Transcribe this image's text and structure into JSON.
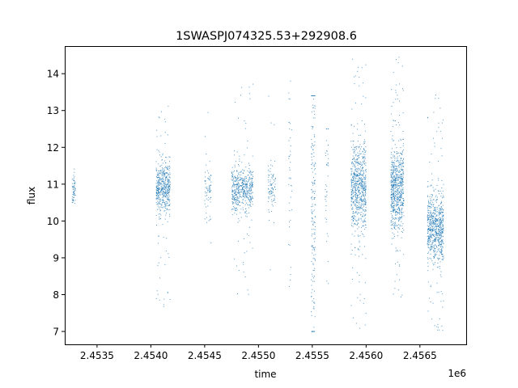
{
  "chart_data": {
    "type": "scatter",
    "title": "1SWASPJ074325.53+292908.6",
    "xlabel": "time",
    "ylabel": "flux",
    "x_offset_label": "1e6",
    "xlim": [
      2453200,
      2456930
    ],
    "ylim": [
      6.65,
      14.75
    ],
    "x_ticks": [
      2453500,
      2454000,
      2454500,
      2455000,
      2455500,
      2456000,
      2456500
    ],
    "x_tick_labels": [
      "2.4535",
      "2.4540",
      "2.4545",
      "2.4550",
      "2.4555",
      "2.4560",
      "2.4565"
    ],
    "y_ticks": [
      7,
      8,
      9,
      10,
      11,
      12,
      13,
      14
    ],
    "y_tick_labels": [
      "7",
      "8",
      "9",
      "10",
      "11",
      "12",
      "13",
      "14"
    ],
    "grid": false,
    "point_color": "#1f77b4",
    "clusters": [
      {
        "x_start": 2453270,
        "x_end": 2453300,
        "y_center": 10.85,
        "y_spread": 0.25,
        "y_min": 10.1,
        "y_max": 12.0,
        "count": 60
      },
      {
        "x_start": 2454050,
        "x_end": 2454180,
        "y_center": 10.9,
        "y_spread": 0.35,
        "y_min": 7.4,
        "y_max": 13.2,
        "count": 500
      },
      {
        "x_start": 2454500,
        "x_end": 2454560,
        "y_center": 10.85,
        "y_spread": 0.4,
        "y_min": 7.2,
        "y_max": 14.4,
        "count": 70
      },
      {
        "x_start": 2454750,
        "x_end": 2454950,
        "y_center": 10.85,
        "y_spread": 0.3,
        "y_min": 7.9,
        "y_max": 13.8,
        "count": 520
      },
      {
        "x_start": 2455090,
        "x_end": 2455160,
        "y_center": 10.9,
        "y_spread": 0.3,
        "y_min": 7.5,
        "y_max": 13.4,
        "count": 90
      },
      {
        "x_start": 2455280,
        "x_end": 2455310,
        "y_center": 11.5,
        "y_spread": 1.6,
        "y_min": 8.2,
        "y_max": 13.8,
        "count": 40
      },
      {
        "x_start": 2455490,
        "x_end": 2455530,
        "y_center": 10.5,
        "y_spread": 1.8,
        "y_min": 7.0,
        "y_max": 13.4,
        "count": 180
      },
      {
        "x_start": 2455620,
        "x_end": 2455650,
        "y_center": 10.5,
        "y_spread": 1.6,
        "y_min": 8.3,
        "y_max": 12.5,
        "count": 40
      },
      {
        "x_start": 2455860,
        "x_end": 2456000,
        "y_center": 10.9,
        "y_spread": 0.6,
        "y_min": 7.0,
        "y_max": 14.4,
        "count": 720
      },
      {
        "x_start": 2456230,
        "x_end": 2456350,
        "y_center": 10.9,
        "y_spread": 0.55,
        "y_min": 7.3,
        "y_max": 14.5,
        "count": 720
      },
      {
        "x_start": 2456570,
        "x_end": 2456720,
        "y_center": 9.8,
        "y_spread": 0.45,
        "y_min": 7.0,
        "y_max": 13.5,
        "count": 720
      }
    ]
  }
}
